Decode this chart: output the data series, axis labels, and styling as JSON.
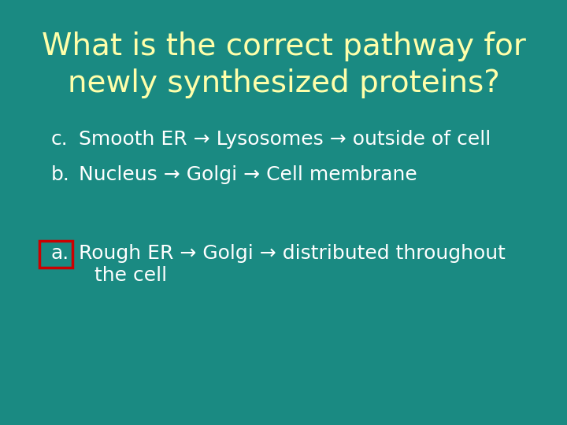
{
  "background_color": "#1a8a82",
  "title_line1": "What is the correct pathway for",
  "title_line2": "newly synthesized proteins?",
  "title_color": "#FFFFAA",
  "title_fontsize": 28,
  "items": [
    {
      "label": "a.",
      "text_line1": "Rough ER → Golgi → distributed throughout",
      "text_line2": "the cell",
      "highlight": true
    },
    {
      "label": "b.",
      "text_line1": "Nucleus → Golgi → Cell membrane",
      "text_line2": null,
      "highlight": false
    },
    {
      "label": "c.",
      "text_line1": "Smooth ER → Lysosomes → outside of cell",
      "text_line2": null,
      "highlight": false
    }
  ],
  "item_color": "#FFFFFF",
  "item_fontsize": 18,
  "highlight_box_color": "#CC0000",
  "font_family": "DejaVu Sans"
}
